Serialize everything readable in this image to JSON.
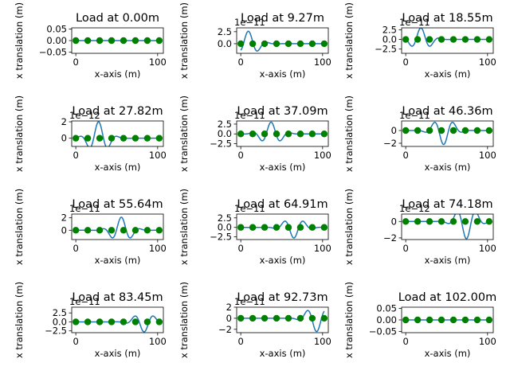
{
  "chart_data": [
    {
      "type": "line",
      "title": "Load at 0.00m",
      "xlabel": "x-axis (m)",
      "ylabel": "x translation (m)",
      "offset_label": "",
      "xlim": [
        -5,
        107
      ],
      "xticks": [
        0,
        100
      ],
      "ylim": [
        -0.055,
        0.055
      ],
      "yticks": [
        -0.05,
        0,
        0.05
      ],
      "ytick_labels": [
        "−0.05",
        "0.00",
        "0.05"
      ],
      "load_pos": 0,
      "amp": 0,
      "markers_x": [
        0,
        14.57,
        29.14,
        43.71,
        58.29,
        72.86,
        87.43,
        102
      ],
      "markers_y": [
        0,
        0,
        0,
        0,
        0,
        0,
        0,
        0
      ],
      "series_color": "#1f77b4",
      "marker_color": "#008000"
    },
    {
      "type": "line",
      "title": "Load at 9.27m",
      "xlabel": "x-axis (m)",
      "ylabel": "x translation (m)",
      "offset_label": "1e−11",
      "xlim": [
        -5,
        107
      ],
      "xticks": [
        0,
        100
      ],
      "ylim": [
        -2.0,
        3.3
      ],
      "yticks": [
        0,
        2.5
      ],
      "ytick_labels": [
        "0.0",
        "2.5"
      ],
      "load_pos": 9.27,
      "amp": 2.6,
      "markers_x": [
        0,
        14.57,
        29.14,
        43.71,
        58.29,
        72.86,
        87.43,
        102
      ],
      "markers_y": [
        0,
        0,
        0,
        0,
        0,
        0,
        0,
        0
      ],
      "series_color": "#1f77b4",
      "marker_color": "#008000"
    },
    {
      "type": "line",
      "title": "Load at 18.55m",
      "xlabel": "x-axis (m)",
      "ylabel": "x translation (m)",
      "offset_label": "1e−11",
      "xlim": [
        -5,
        107
      ],
      "xticks": [
        0,
        100
      ],
      "ylim": [
        -3.6,
        3.0
      ],
      "yticks": [
        -2.5,
        0,
        2.5
      ],
      "ytick_labels": [
        "−2.5",
        "0.0",
        "2.5"
      ],
      "load_pos": 18.55,
      "amp": 3.0,
      "markers_x": [
        0,
        14.57,
        29.14,
        43.71,
        58.29,
        72.86,
        87.43,
        102
      ],
      "markers_y": [
        0,
        0,
        0,
        0,
        0,
        0,
        0,
        0
      ],
      "series_color": "#1f77b4",
      "marker_color": "#008000"
    },
    {
      "type": "line",
      "title": "Load at 27.82m",
      "xlabel": "x-axis (m)",
      "ylabel": "x translation (m)",
      "offset_label": "1e−12",
      "xlim": [
        -5,
        107
      ],
      "xticks": [
        0,
        100
      ],
      "ylim": [
        -1.0,
        2.1
      ],
      "yticks": [
        0,
        2
      ],
      "ytick_labels": [
        "0",
        "2"
      ],
      "load_pos": 27.82,
      "amp": 2.0,
      "markers_x": [
        0,
        14.57,
        29.14,
        43.71,
        58.29,
        72.86,
        87.43,
        102
      ],
      "markers_y": [
        0,
        0,
        0,
        0,
        0,
        0,
        0,
        0
      ],
      "series_color": "#1f77b4",
      "marker_color": "#008000"
    },
    {
      "type": "line",
      "title": "Load at 37.09m",
      "xlabel": "x-axis (m)",
      "ylabel": "x translation (m)",
      "offset_label": "1e−11",
      "xlim": [
        -5,
        107
      ],
      "xticks": [
        0,
        100
      ],
      "ylim": [
        -3.2,
        3.3
      ],
      "yticks": [
        -2.5,
        0,
        2.5
      ],
      "ytick_labels": [
        "−2.5",
        "0.0",
        "2.5"
      ],
      "load_pos": 37.09,
      "amp": 3.0,
      "markers_x": [
        0,
        14.57,
        29.14,
        43.71,
        58.29,
        72.86,
        87.43,
        102
      ],
      "markers_y": [
        0,
        0,
        0,
        0,
        0,
        0,
        0,
        0
      ],
      "series_color": "#1f77b4",
      "marker_color": "#008000"
    },
    {
      "type": "line",
      "title": "Load at 46.36m",
      "xlabel": "x-axis (m)",
      "ylabel": "x translation (m)",
      "offset_label": "1e−11",
      "xlim": [
        -5,
        107
      ],
      "xticks": [
        0,
        100
      ],
      "ylim": [
        -2.5,
        1.5
      ],
      "yticks": [
        -2,
        0
      ],
      "ytick_labels": [
        "−2",
        "0"
      ],
      "load_pos": 46.36,
      "amp": -2.2,
      "markers_x": [
        0,
        14.57,
        29.14,
        43.71,
        58.29,
        72.86,
        87.43,
        102
      ],
      "markers_y": [
        0,
        0,
        0,
        0,
        0,
        0,
        0,
        0
      ],
      "series_color": "#1f77b4",
      "marker_color": "#008000"
    },
    {
      "type": "line",
      "title": "Load at 55.64m",
      "xlabel": "x-axis (m)",
      "ylabel": "x translation (m)",
      "offset_label": "1e−11",
      "xlim": [
        -5,
        107
      ],
      "xticks": [
        0,
        100
      ],
      "ylim": [
        -1.5,
        2.6
      ],
      "yticks": [
        0,
        2
      ],
      "ytick_labels": [
        "0",
        "2"
      ],
      "load_pos": 55.64,
      "amp": 2.1,
      "markers_x": [
        0,
        14.57,
        29.14,
        43.71,
        58.29,
        72.86,
        87.43,
        102
      ],
      "markers_y": [
        0,
        0,
        0,
        0,
        0,
        0,
        0,
        0
      ],
      "series_color": "#1f77b4",
      "marker_color": "#008000"
    },
    {
      "type": "line",
      "title": "Load at 64.91m",
      "xlabel": "x-axis (m)",
      "ylabel": "x translation (m)",
      "offset_label": "1e−11",
      "xlim": [
        -5,
        107
      ],
      "xticks": [
        0,
        100
      ],
      "ylim": [
        -3.2,
        3.5
      ],
      "yticks": [
        -2.5,
        0,
        2.5
      ],
      "ytick_labels": [
        "−2.5",
        "0.0",
        "2.5"
      ],
      "load_pos": 64.91,
      "amp": -2.8,
      "markers_x": [
        0,
        14.57,
        29.14,
        43.71,
        58.29,
        72.86,
        87.43,
        102
      ],
      "markers_y": [
        0,
        0,
        0,
        0,
        0,
        0,
        0,
        0
      ],
      "series_color": "#1f77b4",
      "marker_color": "#008000"
    },
    {
      "type": "line",
      "title": "Load at 74.18m",
      "xlabel": "x-axis (m)",
      "ylabel": "x translation (m)",
      "offset_label": "1e−12",
      "xlim": [
        -5,
        107
      ],
      "xticks": [
        0,
        100
      ],
      "ylim": [
        -2.2,
        0.9
      ],
      "yticks": [
        -2,
        0
      ],
      "ytick_labels": [
        "−2",
        "0"
      ],
      "load_pos": 74.18,
      "amp": -2.1,
      "markers_x": [
        0,
        14.57,
        29.14,
        43.71,
        58.29,
        72.86,
        87.43,
        102
      ],
      "markers_y": [
        0,
        0,
        0,
        0,
        0,
        0,
        0,
        0
      ],
      "series_color": "#1f77b4",
      "marker_color": "#008000"
    },
    {
      "type": "line",
      "title": "Load at 83.45m",
      "xlabel": "x-axis (m)",
      "ylabel": "x translation (m)",
      "offset_label": "1e−11",
      "xlim": [
        -5,
        107
      ],
      "xticks": [
        0,
        100
      ],
      "ylim": [
        -3.0,
        4.1
      ],
      "yticks": [
        -2.5,
        0,
        2.5
      ],
      "ytick_labels": [
        "−2.5",
        "0.0",
        "2.5"
      ],
      "load_pos": 83.45,
      "amp": -2.8,
      "markers_x": [
        0,
        14.57,
        29.14,
        43.71,
        58.29,
        72.86,
        87.43,
        102
      ],
      "markers_y": [
        0,
        0,
        0,
        0,
        0,
        0,
        0,
        0
      ],
      "series_color": "#1f77b4",
      "marker_color": "#008000"
    },
    {
      "type": "line",
      "title": "Load at 92.73m",
      "xlabel": "x-axis (m)",
      "ylabel": "x translation (m)",
      "offset_label": "1e−11",
      "xlim": [
        -5,
        107
      ],
      "xticks": [
        0,
        100
      ],
      "ylim": [
        -2.6,
        2.0
      ],
      "yticks": [
        -2,
        0,
        2
      ],
      "ytick_labels": [
        "−2",
        "0",
        "2"
      ],
      "load_pos": 92.73,
      "amp": -2.4,
      "markers_x": [
        0,
        14.57,
        29.14,
        43.71,
        58.29,
        72.86,
        87.43,
        102
      ],
      "markers_y": [
        0,
        0,
        0,
        0,
        0,
        0,
        0,
        0
      ],
      "series_color": "#1f77b4",
      "marker_color": "#008000"
    },
    {
      "type": "line",
      "title": "Load at 102.00m",
      "xlabel": "x-axis (m)",
      "ylabel": "x translation (m)",
      "offset_label": "",
      "xlim": [
        -5,
        107
      ],
      "xticks": [
        0,
        100
      ],
      "ylim": [
        -0.055,
        0.055
      ],
      "yticks": [
        -0.05,
        0,
        0.05
      ],
      "ytick_labels": [
        "−0.05",
        "0.00",
        "0.05"
      ],
      "load_pos": 102,
      "amp": 0,
      "markers_x": [
        0,
        14.57,
        29.14,
        43.71,
        58.29,
        72.86,
        87.43,
        102
      ],
      "markers_y": [
        0,
        0,
        0,
        0,
        0,
        0,
        0,
        0
      ],
      "series_color": "#1f77b4",
      "marker_color": "#008000"
    }
  ]
}
